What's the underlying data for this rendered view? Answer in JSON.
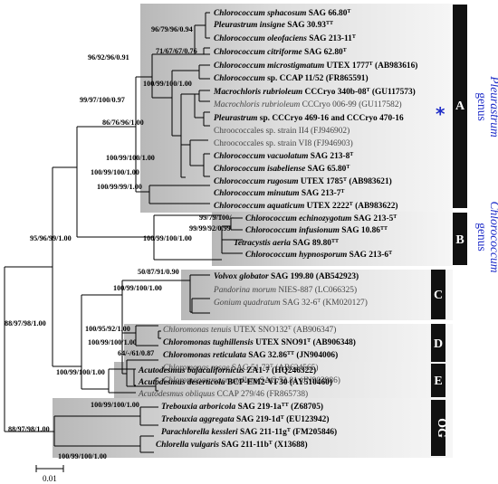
{
  "taxa": [
    {
      "id": "t1",
      "parts": [
        {
          "t": "Chlorococcum sphacosum",
          "i": true
        },
        {
          "t": " SAG 66.80",
          "i": false
        },
        {
          "t": "T",
          "sup": true
        }
      ],
      "bold": true,
      "grey": false
    },
    {
      "id": "t2",
      "parts": [
        {
          "t": "Pleurastrum insigne",
          "i": true
        },
        {
          "t": " SAG 30.93",
          "i": false
        },
        {
          "t": "TT",
          "sup": true
        }
      ],
      "bold": true,
      "grey": false
    },
    {
      "id": "t3",
      "parts": [
        {
          "t": "Chlorococcum oleofaciens",
          "i": true
        },
        {
          "t": " SAG 213-11",
          "i": false
        },
        {
          "t": "T",
          "sup": true
        }
      ],
      "bold": true,
      "grey": false
    },
    {
      "id": "t4",
      "parts": [
        {
          "t": "Chlorococcum citriforme",
          "i": true
        },
        {
          "t": " SAG 62.80",
          "i": false
        },
        {
          "t": "T",
          "sup": true
        }
      ],
      "bold": true,
      "grey": false
    },
    {
      "id": "t5",
      "parts": [
        {
          "t": "Chlorococcum microstigmatum",
          "i": true
        },
        {
          "t": " UTEX 1777",
          "i": false
        },
        {
          "t": "T",
          "sup": true
        },
        {
          "t": " (AB983616)",
          "i": false
        }
      ],
      "bold": true,
      "grey": false
    },
    {
      "id": "t6",
      "parts": [
        {
          "t": "Chlorococcum",
          "i": true
        },
        {
          "t": " sp. CCAP 11/52 (FR865591)",
          "i": false
        }
      ],
      "bold": true,
      "grey": false
    },
    {
      "id": "t7",
      "parts": [
        {
          "t": "Macrochloris rubrioleum",
          "i": true
        },
        {
          "t": " CCCryo 340b-08",
          "i": false
        },
        {
          "t": "T",
          "sup": true
        },
        {
          "t": " (GU117573)",
          "i": false
        }
      ],
      "bold": true,
      "grey": false
    },
    {
      "id": "t8",
      "parts": [
        {
          "t": "Macrochloris rubrioleum",
          "i": true
        },
        {
          "t": " CCCryo 006-99 (GU117582)",
          "i": false
        }
      ],
      "bold": false,
      "grey": true
    },
    {
      "id": "t9",
      "parts": [
        {
          "t": "Pleurastrum",
          "i": true
        },
        {
          "t": " sp. CCCryo 469-16 and CCCryo 470-16",
          "i": false
        }
      ],
      "bold": true,
      "grey": false
    },
    {
      "id": "t10",
      "parts": [
        {
          "t": "Chroococcales sp. strain II4 (FJ946902)",
          "i": false
        }
      ],
      "bold": false,
      "grey": true
    },
    {
      "id": "t11",
      "parts": [
        {
          "t": "Chroococcales sp. strain VI8 (FJ946903)",
          "i": false
        }
      ],
      "bold": false,
      "grey": true
    },
    {
      "id": "t12",
      "parts": [
        {
          "t": "Chlorococcum vacuolatum",
          "i": true
        },
        {
          "t": " SAG 213-8",
          "i": false
        },
        {
          "t": "T",
          "sup": true
        }
      ],
      "bold": true,
      "grey": false
    },
    {
      "id": "t13",
      "parts": [
        {
          "t": "Chlorococcum isabeliense",
          "i": true
        },
        {
          "t": " SAG 65.80",
          "i": false
        },
        {
          "t": "T",
          "sup": true
        }
      ],
      "bold": true,
      "grey": false
    },
    {
      "id": "t14",
      "parts": [
        {
          "t": "Chlorococcum rugosum",
          "i": true
        },
        {
          "t": " UTEX 1785",
          "i": false
        },
        {
          "t": "T",
          "sup": true
        },
        {
          "t": " (AB983621)",
          "i": false
        }
      ],
      "bold": true,
      "grey": false
    },
    {
      "id": "t15",
      "parts": [
        {
          "t": "Chlorococcum minutum",
          "i": true
        },
        {
          "t": " SAG 213-7",
          "i": false
        },
        {
          "t": "T",
          "sup": true
        }
      ],
      "bold": true,
      "grey": false
    },
    {
      "id": "t16",
      "parts": [
        {
          "t": "Chlorococcum aquaticum",
          "i": true
        },
        {
          "t": " UTEX 2222",
          "i": false
        },
        {
          "t": "T",
          "sup": true
        },
        {
          "t": " (AB983622)",
          "i": false
        }
      ],
      "bold": true,
      "grey": false
    },
    {
      "id": "t17",
      "parts": [
        {
          "t": "Chlorococcum echinozygotum",
          "i": true
        },
        {
          "t": " SAG 213-5",
          "i": false
        },
        {
          "t": "T",
          "sup": true
        }
      ],
      "bold": true,
      "grey": false
    },
    {
      "id": "t18",
      "parts": [
        {
          "t": "Chlorococcum infusionum",
          "i": true
        },
        {
          "t": " SAG 10.86",
          "i": false
        },
        {
          "t": "TT",
          "sup": true
        }
      ],
      "bold": true,
      "grey": false
    },
    {
      "id": "t19",
      "parts": [
        {
          "t": "Tetracystis aeria",
          "i": true
        },
        {
          "t": " SAG 89.80",
          "i": false
        },
        {
          "t": "TT",
          "sup": true
        }
      ],
      "bold": true,
      "grey": false
    },
    {
      "id": "t20",
      "parts": [
        {
          "t": "Chlorococcum hypnosporum",
          "i": true
        },
        {
          "t": " SAG 213-6",
          "i": false
        },
        {
          "t": "T",
          "sup": true
        }
      ],
      "bold": true,
      "grey": false
    },
    {
      "id": "t21",
      "parts": [
        {
          "t": "Volvox globator",
          "i": true
        },
        {
          "t": " SAG 199.80 (AB542923)",
          "i": false
        }
      ],
      "bold": true,
      "grey": false
    },
    {
      "id": "t22",
      "parts": [
        {
          "t": "Pandorina morum",
          "i": true
        },
        {
          "t": " NIES-887 (LC066325)",
          "i": false
        }
      ],
      "bold": false,
      "grey": true
    },
    {
      "id": "t23",
      "parts": [
        {
          "t": "Gonium quadratum",
          "i": true
        },
        {
          "t": " SAG 32-6",
          "i": false
        },
        {
          "t": "T",
          "sup": true
        },
        {
          "t": " (KM020127)",
          "i": false
        }
      ],
      "bold": false,
      "grey": true
    },
    {
      "id": "t24",
      "parts": [
        {
          "t": "Chloromonas tenuis",
          "i": true
        },
        {
          "t": " UTEX SNO132",
          "i": false
        },
        {
          "t": "T",
          "sup": true
        },
        {
          "t": " (AB906347)",
          "i": false
        }
      ],
      "bold": false,
      "grey": true
    },
    {
      "id": "t25",
      "parts": [
        {
          "t": "Chloromonas tughillensis",
          "i": true
        },
        {
          "t": " UTEX SNO91",
          "i": false
        },
        {
          "t": "T",
          "sup": true
        },
        {
          "t": " (AB906348)",
          "i": false
        }
      ],
      "bold": true,
      "grey": false
    },
    {
      "id": "t26",
      "parts": [
        {
          "t": "Chloromonas reticulata",
          "i": true
        },
        {
          "t": " SAG 32.86",
          "i": false
        },
        {
          "t": "TT",
          "sup": true
        },
        {
          "t": " (JN904006)",
          "i": false
        }
      ],
      "bold": true,
      "grey": false
    },
    {
      "id": "t27",
      "parts": [
        {
          "t": "Chloromonas rosae",
          "i": true
        },
        {
          "t": " SAG 51.72",
          "i": false
        },
        {
          "t": "T",
          "sup": true
        },
        {
          "t": " (AB624565)",
          "i": false
        }
      ],
      "bold": false,
      "grey": true
    },
    {
      "id": "t28",
      "parts": [
        {
          "t": "Chloromonas macrostellata",
          "i": true
        },
        {
          "t": " SAG 72.81 (JN903986)",
          "i": false
        }
      ],
      "bold": false,
      "grey": true
    },
    {
      "id": "t29",
      "parts": [
        {
          "t": "Acutodesmus bajacalifornicus",
          "i": true
        },
        {
          "t": " ZA1-7 (HQ246322)",
          "i": false
        }
      ],
      "bold": true,
      "grey": false
    },
    {
      "id": "t30",
      "parts": [
        {
          "t": "Acutodesmus deserticola",
          "i": true
        },
        {
          "t": " BCP-EM2-VF30 (AY510460)",
          "i": false
        }
      ],
      "bold": true,
      "grey": false
    },
    {
      "id": "t31",
      "parts": [
        {
          "t": "Acutodesmus obliquus",
          "i": true
        },
        {
          "t": " CCAP 279/46 (FR865738)",
          "i": false
        }
      ],
      "bold": false,
      "grey": true
    },
    {
      "id": "t32",
      "parts": [
        {
          "t": "Trebouxia arboricola",
          "i": true
        },
        {
          "t": " SAG 219-1a",
          "i": false
        },
        {
          "t": "TT",
          "sup": true
        },
        {
          "t": " (Z68705)",
          "i": false
        }
      ],
      "bold": true,
      "grey": false
    },
    {
      "id": "t33",
      "parts": [
        {
          "t": "Trebouxia aggregata",
          "i": true
        },
        {
          "t": " SAG 219-1d",
          "i": false
        },
        {
          "t": "T",
          "sup": true
        },
        {
          "t": " (EU123942)",
          "i": false
        }
      ],
      "bold": true,
      "grey": false
    },
    {
      "id": "t34",
      "parts": [
        {
          "t": "Parachlorella kessleri",
          "i": true
        },
        {
          "t": " SAG 211-11g",
          "i": false
        },
        {
          "t": "T",
          "sup": true
        },
        {
          "t": " (FM205846)",
          "i": false
        }
      ],
      "bold": true,
      "grey": false
    },
    {
      "id": "t35",
      "parts": [
        {
          "t": "Chlorella vulgaris",
          "i": true
        },
        {
          "t": " SAG 211-11b",
          "i": false
        },
        {
          "t": "T",
          "sup": true
        },
        {
          "t": " (X13688)",
          "i": false
        }
      ],
      "bold": true,
      "grey": false
    }
  ],
  "supports": {
    "s_pleu_sub": "96/79/96/0.94",
    "s_oleo": "71/67/67/0.76",
    "s_micro": "96/92/96/0.91",
    "s_ccap": "100/99/100/1.00",
    "s_macro": "99/97/100/0.97",
    "s_A_inner": "86/76/96/1.00",
    "s_isab": "100/99/100/1.00",
    "s_rug": "100/99/100/1.00",
    "s_A": "100/99/99/1.00",
    "s_echin": "99/79/100/-",
    "s_infus": "99/99/92/0.99",
    "s_B": "100/99/100/1.00",
    "s_AB": "95/96/99/1.00",
    "s_volvox": "50/87/91/0.90",
    "s_C": "100/99/100/1.00",
    "s_D_top": "100/95/92/1.00",
    "s_D_mid": "100/99/100/1.00",
    "s_D_low": "64/-/61/0.87",
    "s_E": "100/99/100/1.00",
    "s_root": "88/97/98/1.00",
    "s_treb": "100/99/100/1.00",
    "s_OG": "88/97/98/1.00",
    "s_chlor": "100/99/100/1.00"
  },
  "clades": [
    {
      "id": "A",
      "label": "A"
    },
    {
      "id": "B",
      "label": "B"
    },
    {
      "id": "C",
      "label": "C"
    },
    {
      "id": "D",
      "label": "D"
    },
    {
      "id": "E",
      "label": "E"
    },
    {
      "id": "OG",
      "label": "OG"
    }
  ],
  "genus_labels": {
    "pleurastrum": {
      "word1": "genus",
      "word2": "Pleurastrum"
    },
    "chlorococcum": {
      "word1": "genus",
      "word2": "Chlorococcum"
    }
  },
  "marker": "*",
  "scale_label": "0.01",
  "colors": {
    "genus_text": "#1f2dc8",
    "star": "#1f2dc8",
    "clade_box": "#111111",
    "shade_dark": "#b8b8b8",
    "shade_light": "#f2f2f2",
    "grey_taxon": "#444444"
  }
}
